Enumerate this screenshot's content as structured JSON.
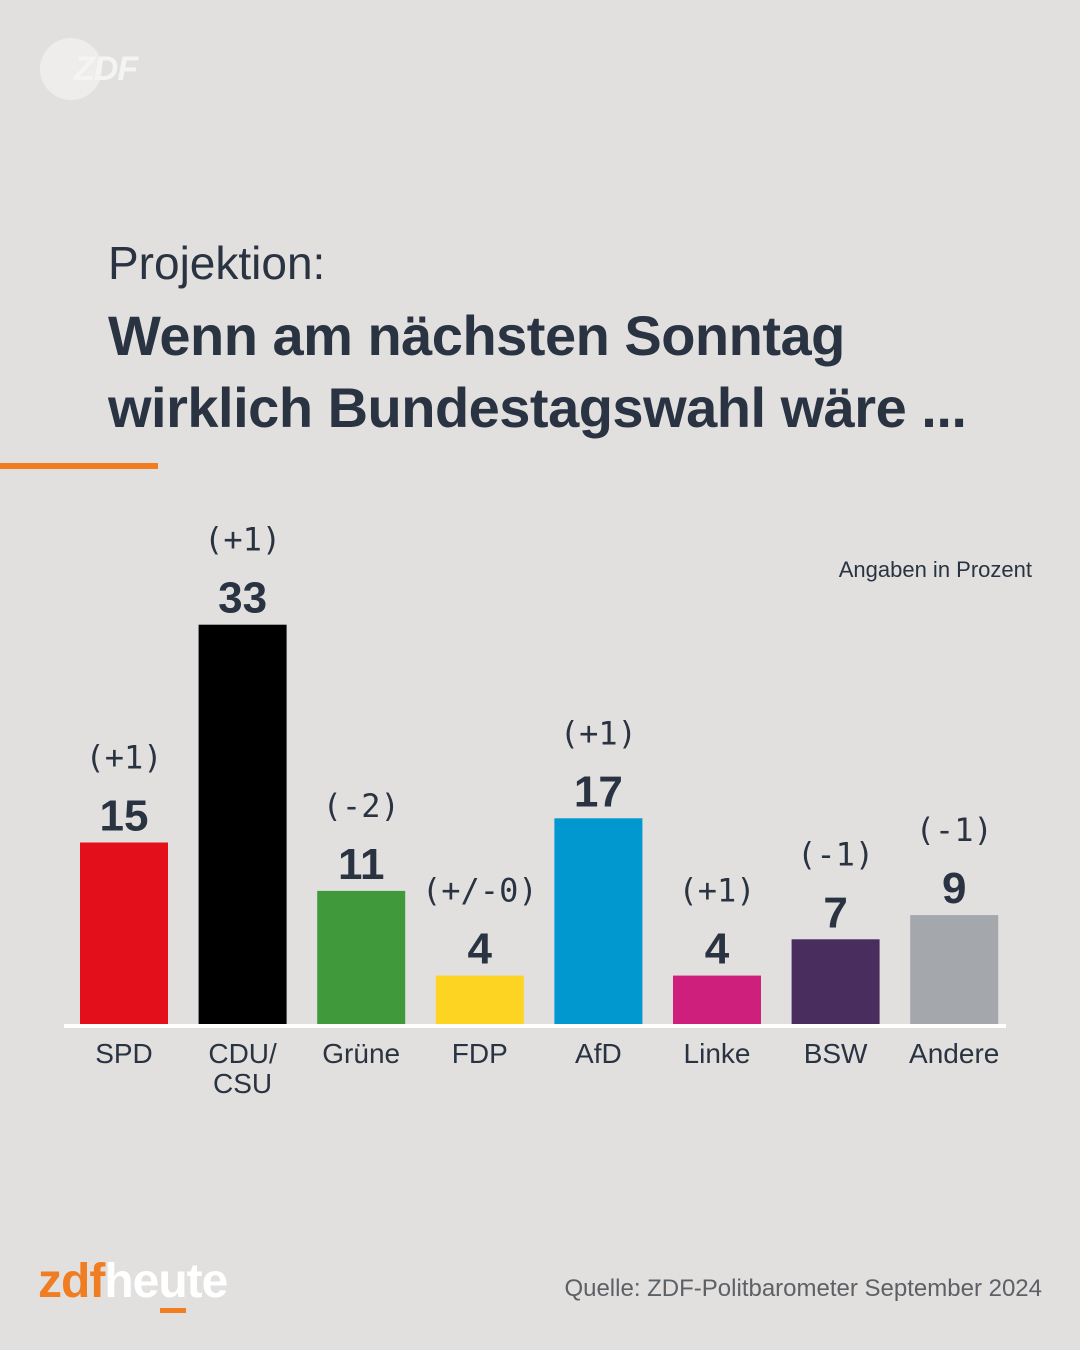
{
  "branding": {
    "watermark": "ZDF",
    "footer_logo_part1": "zdf",
    "footer_logo_part2": "heute",
    "accent_color": "#f07d22"
  },
  "header": {
    "subtitle": "Projektion:",
    "title_line1": "Wenn am nächsten Sonntag",
    "title_line2": "wirklich Bundestagswahl wäre ..."
  },
  "unit_note": "Angaben in Prozent",
  "source": "Quelle: ZDF-Politbarometer September 2024",
  "chart_data": {
    "type": "bar",
    "title": "Projektion: Wenn am nächsten Sonntag wirklich Bundestagswahl wäre ...",
    "xlabel": "",
    "ylabel": "Angaben in Prozent",
    "ylim": [
      0,
      33
    ],
    "grid": false,
    "categories": [
      "SPD",
      "CDU/\nCSU",
      "Grüne",
      "FDP",
      "AfD",
      "Linke",
      "BSW",
      "Andere"
    ],
    "values": [
      15,
      33,
      11,
      4,
      17,
      4,
      7,
      9
    ],
    "changes": [
      "(+1)",
      "(+1)",
      "(-2)",
      "(+/-0)",
      "(+1)",
      "(+1)",
      "(-1)",
      "(-1)"
    ],
    "colors": [
      "#e3101c",
      "#000000",
      "#409a3c",
      "#fdd421",
      "#0098cf",
      "#cd1f7b",
      "#4a2d5f",
      "#a4a7ac"
    ]
  }
}
